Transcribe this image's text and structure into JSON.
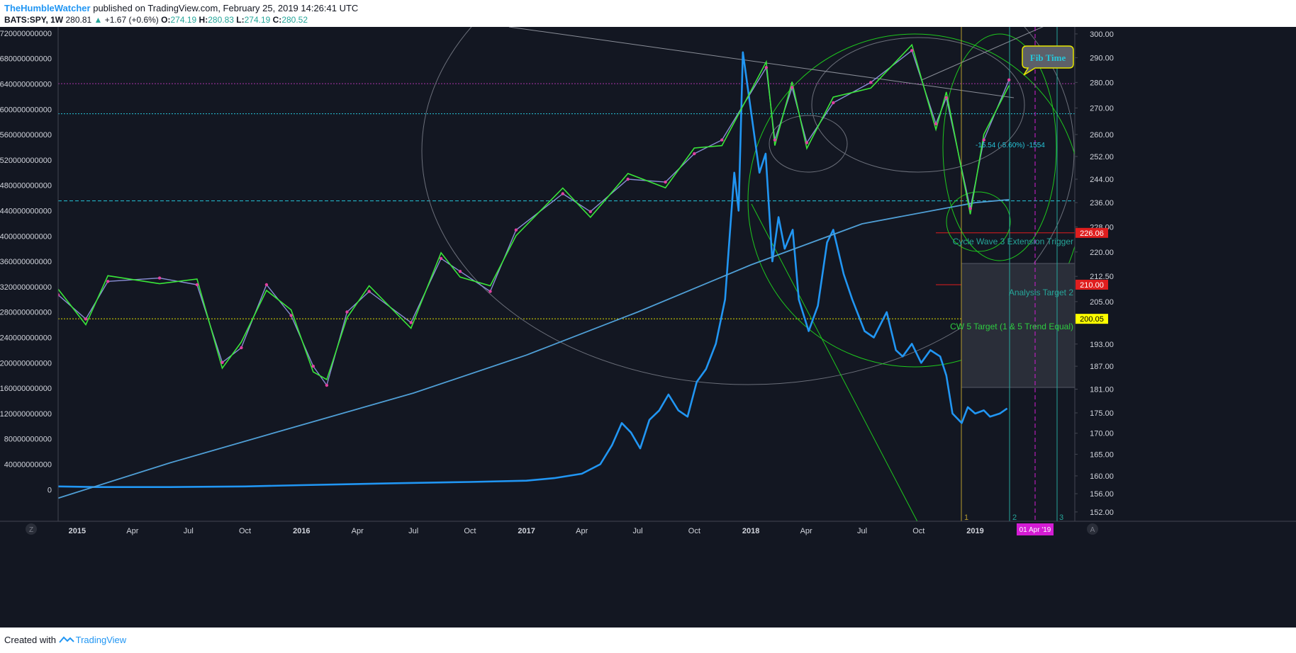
{
  "header": {
    "author": "TheHumbleWatcher",
    "published_text": "published on TradingView.com, February 25, 2019 14:26:41 UTC",
    "symbol": "BATS:SPY, 1W",
    "last": "280.81",
    "change": "+1.67 (+0.6%)",
    "open_label": "O:",
    "open_value": "274.19",
    "high_label": "H:",
    "high_value": "280.83",
    "low_label": "L:",
    "low_value": "274.19",
    "close_label": "C:",
    "close_value": "280.52"
  },
  "footer": {
    "created_with": "Created with",
    "brand": "TradingView"
  },
  "chart_data": {
    "type": "line",
    "title": "",
    "x_ticks": [
      "2015",
      "Apr",
      "Jul",
      "Oct",
      "2016",
      "Apr",
      "Jul",
      "Oct",
      "2017",
      "Apr",
      "Jul",
      "Oct",
      "2018",
      "Apr",
      "Jul",
      "Oct",
      "2019"
    ],
    "left_axis": {
      "ticks": [
        "720000000000",
        "680000000000",
        "640000000000",
        "600000000000",
        "560000000000",
        "520000000000",
        "480000000000",
        "440000000000",
        "400000000000",
        "360000000000",
        "320000000000",
        "280000000000",
        "240000000000",
        "200000000000",
        "160000000000",
        "120000000000",
        "80000000000",
        "40000000000",
        "0"
      ],
      "range": [
        -50000000000,
        730000000000
      ]
    },
    "right_axis": {
      "ticks": [
        "300.00",
        "290.00",
        "280.00",
        "270.00",
        "260.00",
        "252.00",
        "244.00",
        "236.00",
        "228.00",
        "220.00",
        "212.50",
        "205.00",
        "193.00",
        "187.00",
        "181.00",
        "175.00",
        "170.00",
        "165.00",
        "160.00",
        "156.00",
        "152.00"
      ],
      "scale": "log",
      "range": [
        150,
        303
      ]
    },
    "price_badges": [
      {
        "value": "226.06",
        "color": "#e01e1e",
        "text_color": "#ffffff"
      },
      {
        "value": "210.00",
        "color": "#e01e1e",
        "text_color": "#ffffff"
      },
      {
        "value": "200.05",
        "color": "#ffff00",
        "text_color": "#000000"
      }
    ],
    "time_badge": "01 Apr '19",
    "annotations": [
      {
        "text": "Fib Time",
        "color": "#26c6da"
      },
      {
        "text": "Cycle Wave 3 Extension Trigger",
        "color": "#26a69a"
      },
      {
        "text": "Analysis Target 2",
        "color": "#26a69a"
      },
      {
        "text": "CW 5 Target (1 & 5 Trend Equal)",
        "color": "#2ecc40"
      },
      {
        "text": "-15.54 (-5.60%) -1554",
        "color": "#26c6da"
      }
    ],
    "time_marker_labels": [
      "1",
      "2",
      "3"
    ],
    "axis_corner_left": "Z",
    "axis_corner_right": "A",
    "series": [
      {
        "name": "",
        "axis": "left",
        "color": "#2196f3",
        "points": [
          [
            "2014-12-01",
            5000000000
          ],
          [
            "2015-02-01",
            4000000000
          ],
          [
            "2015-06-01",
            4000000000
          ],
          [
            "2015-10-01",
            5000000000
          ],
          [
            "2016-01-01",
            7000000000
          ],
          [
            "2016-06-01",
            10000000000
          ],
          [
            "2016-10-01",
            12000000000
          ],
          [
            "2017-01-01",
            14000000000
          ],
          [
            "2017-02-15",
            18000000000
          ],
          [
            "2017-04-01",
            25000000000
          ],
          [
            "2017-05-01",
            40000000000
          ],
          [
            "2017-05-20",
            70000000000
          ],
          [
            "2017-06-05",
            105000000000
          ],
          [
            "2017-06-20",
            90000000000
          ],
          [
            "2017-07-05",
            65000000000
          ],
          [
            "2017-07-20",
            110000000000
          ],
          [
            "2017-08-05",
            125000000000
          ],
          [
            "2017-08-20",
            150000000000
          ],
          [
            "2017-09-05",
            125000000000
          ],
          [
            "2017-09-20",
            115000000000
          ],
          [
            "2017-10-05",
            170000000000
          ],
          [
            "2017-10-20",
            190000000000
          ],
          [
            "2017-11-05",
            230000000000
          ],
          [
            "2017-11-20",
            300000000000
          ],
          [
            "2017-12-05",
            500000000000
          ],
          [
            "2017-12-12",
            440000000000
          ],
          [
            "2017-12-19",
            690000000000
          ],
          [
            "2018-01-05",
            570000000000
          ],
          [
            "2018-01-15",
            500000000000
          ],
          [
            "2018-01-25",
            530000000000
          ],
          [
            "2018-02-05",
            360000000000
          ],
          [
            "2018-02-15",
            430000000000
          ],
          [
            "2018-02-25",
            380000000000
          ],
          [
            "2018-03-10",
            410000000000
          ],
          [
            "2018-03-20",
            300000000000
          ],
          [
            "2018-04-05",
            250000000000
          ],
          [
            "2018-04-20",
            290000000000
          ],
          [
            "2018-05-05",
            390000000000
          ],
          [
            "2018-05-15",
            410000000000
          ],
          [
            "2018-06-01",
            340000000000
          ],
          [
            "2018-06-15",
            300000000000
          ],
          [
            "2018-07-05",
            250000000000
          ],
          [
            "2018-07-20",
            240000000000
          ],
          [
            "2018-08-10",
            280000000000
          ],
          [
            "2018-08-25",
            220000000000
          ],
          [
            "2018-09-05",
            210000000000
          ],
          [
            "2018-09-20",
            230000000000
          ],
          [
            "2018-10-05",
            200000000000
          ],
          [
            "2018-10-20",
            220000000000
          ],
          [
            "2018-11-05",
            210000000000
          ],
          [
            "2018-11-15",
            180000000000
          ],
          [
            "2018-11-25",
            120000000000
          ],
          [
            "2018-12-10",
            105000000000
          ],
          [
            "2018-12-20",
            130000000000
          ],
          [
            "2019-01-01",
            120000000000
          ],
          [
            "2019-01-15",
            125000000000
          ],
          [
            "2019-01-25",
            115000000000
          ],
          [
            "2019-02-10",
            120000000000
          ],
          [
            "2019-02-22",
            128000000000
          ]
        ]
      },
      {
        "name": "",
        "axis": "right",
        "color": "#4f9fd6",
        "points": [
          [
            "2014-12-01",
            155
          ],
          [
            "2015-06-01",
            163
          ],
          [
            "2016-01-01",
            172
          ],
          [
            "2016-07-01",
            180
          ],
          [
            "2017-01-01",
            190
          ],
          [
            "2017-07-01",
            202
          ],
          [
            "2018-01-01",
            216
          ],
          [
            "2018-07-01",
            229
          ],
          [
            "2019-01-01",
            236
          ],
          [
            "2019-02-25",
            237
          ]
        ]
      },
      {
        "name": "BATS:SPY",
        "axis": "right",
        "color": "#8a8fd6",
        "points": [
          [
            "2014-12-01",
            207
          ],
          [
            "2015-01-15",
            200
          ],
          [
            "2015-02-20",
            211
          ],
          [
            "2015-05-15",
            212
          ],
          [
            "2015-07-15",
            210
          ],
          [
            "2015-08-25",
            188
          ],
          [
            "2015-09-25",
            192
          ],
          [
            "2015-11-05",
            210
          ],
          [
            "2015-12-15",
            201
          ],
          [
            "2016-01-20",
            187
          ],
          [
            "2016-02-11",
            182
          ],
          [
            "2016-03-15",
            202
          ],
          [
            "2016-04-20",
            208
          ],
          [
            "2016-06-27",
            199
          ],
          [
            "2016-08-15",
            218
          ],
          [
            "2016-09-15",
            214
          ],
          [
            "2016-11-03",
            208
          ],
          [
            "2016-12-15",
            227
          ],
          [
            "2017-03-01",
            239
          ],
          [
            "2017-04-15",
            233
          ],
          [
            "2017-06-15",
            244
          ],
          [
            "2017-08-15",
            243
          ],
          [
            "2017-10-01",
            253
          ],
          [
            "2017-11-15",
            258
          ],
          [
            "2018-01-26",
            286
          ],
          [
            "2018-02-09",
            258
          ],
          [
            "2018-03-09",
            278
          ],
          [
            "2018-04-02",
            257
          ],
          [
            "2018-05-15",
            272
          ],
          [
            "2018-07-15",
            280
          ],
          [
            "2018-09-20",
            293
          ],
          [
            "2018-10-29",
            264
          ],
          [
            "2018-11-15",
            274
          ],
          [
            "2018-12-24",
            234
          ],
          [
            "2019-01-15",
            258
          ],
          [
            "2019-02-25",
            281
          ]
        ]
      }
    ],
    "horizontal_levels": [
      {
        "value": 279.5,
        "color": "#aa33aa",
        "style": "dotted"
      },
      {
        "value": 267.8,
        "color": "#26c6da",
        "style": "dotted"
      },
      {
        "value": 236.6,
        "color": "#26c6da",
        "style": "dashed"
      },
      {
        "value": 200.05,
        "color": "#dddd00",
        "style": "dotted"
      },
      {
        "value": 226.06,
        "color": "#e01e1e",
        "style": "solid"
      },
      {
        "value": 210.0,
        "color": "#e01e1e",
        "style": "solid"
      }
    ]
  }
}
